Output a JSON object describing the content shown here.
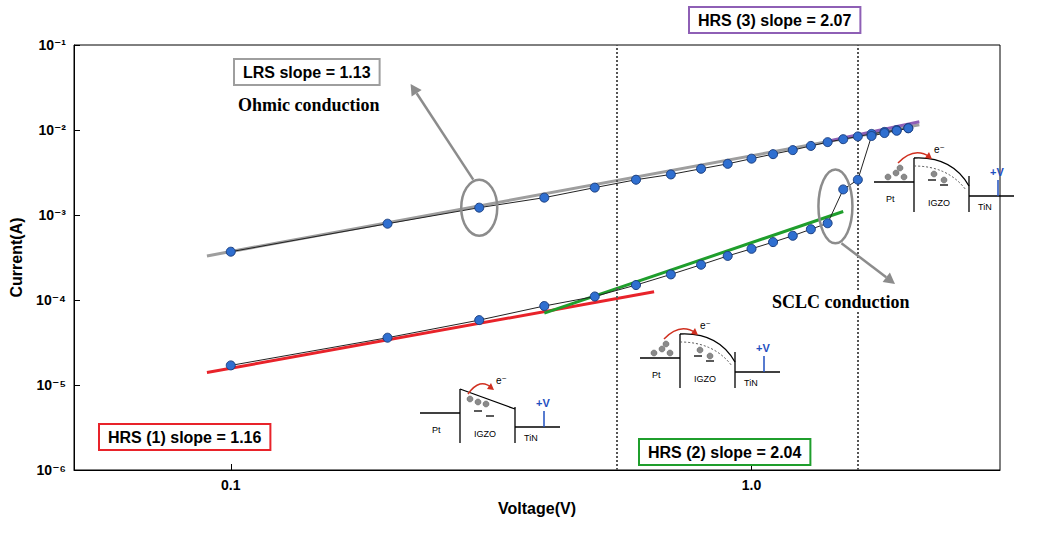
{
  "chart_data": {
    "type": "line",
    "log": true,
    "grid": false,
    "marker": "circle",
    "x_label": "Voltage(V)",
    "y_label": "Current(A)",
    "xlim": [
      0.05,
      3
    ],
    "xticks": [
      0.1,
      {
        "value": 1,
        "label": "1.0"
      }
    ],
    "ylim": [
      1e-06,
      0.1
    ],
    "yticks": [
      {
        "value": 1e-06,
        "label": "10⁻⁶"
      },
      {
        "value": 1e-05,
        "label": "10⁻⁵"
      },
      {
        "value": 0.0001,
        "label": "10⁻⁴"
      },
      {
        "value": 0.001,
        "label": "10⁻³"
      },
      {
        "value": 0.01,
        "label": "10⁻²"
      },
      {
        "value": 0.1,
        "label": "10⁻¹"
      }
    ],
    "x": [
      0.1,
      0.2,
      0.3,
      0.4,
      0.5,
      0.6,
      0.7,
      0.8,
      0.9,
      1.0,
      1.1,
      1.2,
      1.3,
      1.4,
      1.5,
      1.6,
      1.7,
      1.8,
      1.9,
      2.0
    ],
    "series": [
      {
        "color": "#2f6fd0",
        "values": [
          0.00037,
          0.00079,
          0.00122,
          0.0016,
          0.0021,
          0.0026,
          0.003,
          0.0035,
          0.004,
          0.0046,
          0.0052,
          0.0058,
          0.0065,
          0.0072,
          0.0078,
          0.0084,
          0.009,
          0.0095,
          0.01,
          0.0105
        ]
      },
      {
        "color": "#2f6fd0",
        "values": [
          1.7e-05,
          3.6e-05,
          5.8e-05,
          8.5e-05,
          0.00011,
          0.00015,
          0.0002,
          0.00026,
          0.00033,
          0.0004,
          0.00048,
          0.00057,
          0.00068,
          0.0008,
          0.002,
          0.0026,
          0.0085,
          0.0092,
          0.0098,
          0.0105
        ]
      }
    ],
    "fits": [
      {
        "label": "LRS slope = 1.13",
        "color": "#9e9e9e",
        "x": [
          0.09,
          2.1
        ],
        "values": [
          0.00033,
          0.0115
        ]
      },
      {
        "label": "HRS (1) slope = 1.16",
        "color": "#e8232a",
        "x": [
          0.09,
          0.65
        ],
        "values": [
          1.4e-05,
          0.000125
        ]
      },
      {
        "label": "HRS (2) slope = 2.04",
        "color": "#1f9e2c",
        "x": [
          0.4,
          1.5
        ],
        "values": [
          7e-05,
          0.0011
        ]
      },
      {
        "label": "HRS (3) slope = 2.07",
        "color": "#8e5fb5",
        "x": [
          1.4,
          2.1
        ],
        "values": [
          0.0074,
          0.0125
        ]
      }
    ],
    "vlines": [
      0.55,
      1.6
    ],
    "annotations": {
      "ohmic": "Ohmic conduction",
      "sclc": "SCLC conduction"
    },
    "band_labels": {
      "left": "Pt",
      "middle": "IGZO",
      "right": "TiN",
      "bias": "+V",
      "carrier": "e⁻"
    }
  }
}
